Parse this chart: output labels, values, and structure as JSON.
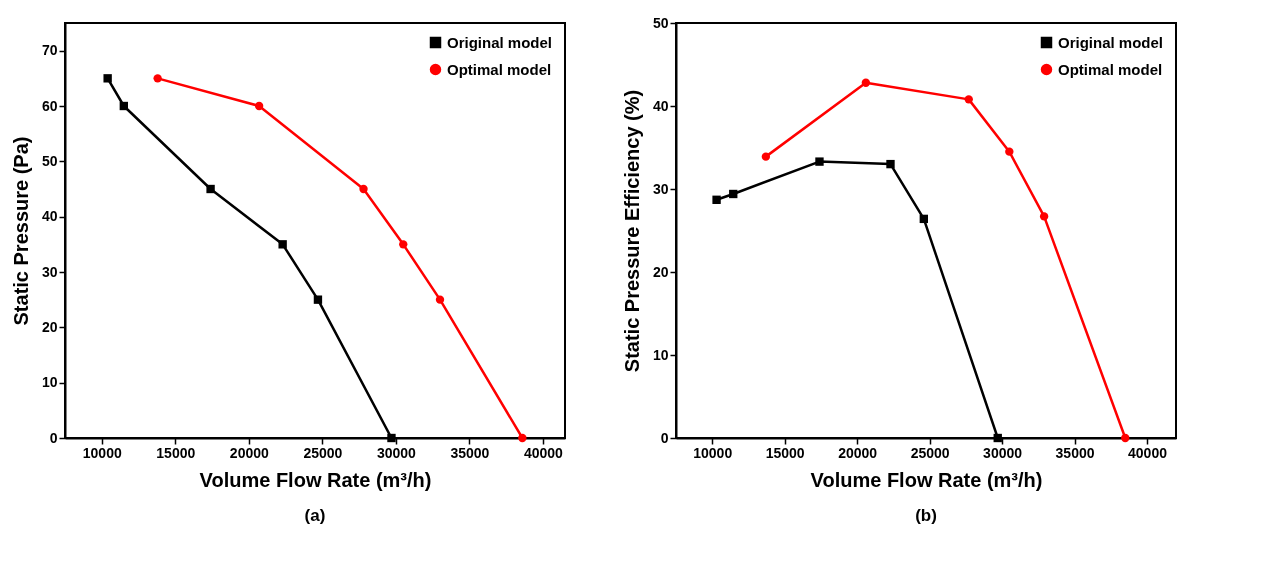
{
  "chart_data": [
    {
      "type": "line",
      "title": "(a)",
      "xlabel": "Volume Flow Rate (m³/h)",
      "ylabel": "Static Pressure (Pa)",
      "xlim": [
        7500,
        41500
      ],
      "xticks": [
        10000,
        15000,
        20000,
        25000,
        30000,
        35000,
        40000
      ],
      "ylim": [
        0,
        75
      ],
      "yticks": [
        0,
        10,
        20,
        30,
        40,
        50,
        60,
        70
      ],
      "grid": false,
      "legend": "top right",
      "series": [
        {
          "name": "Original model",
          "color": "#000000",
          "marker": "square",
          "x": [
            10400,
            11500,
            17400,
            22300,
            24700,
            29700
          ],
          "values": [
            65,
            60,
            45,
            35,
            25,
            0
          ]
        },
        {
          "name": "Optimal model",
          "color": "#ff0000",
          "marker": "circle",
          "x": [
            13800,
            20700,
            27800,
            30500,
            33000,
            38600
          ],
          "values": [
            65,
            60,
            45,
            35,
            25,
            0
          ]
        }
      ]
    },
    {
      "type": "line",
      "title": "(b)",
      "xlabel": "Volume Flow Rate (m³/h)",
      "ylabel": "Static Pressure Efficiency (%)",
      "xlim": [
        7500,
        42000
      ],
      "xticks": [
        10000,
        15000,
        20000,
        25000,
        30000,
        35000,
        40000
      ],
      "ylim": [
        0,
        50
      ],
      "yticks": [
        0,
        10,
        20,
        30,
        40,
        50
      ],
      "grid": false,
      "legend": "top right",
      "series": [
        {
          "name": "Original model",
          "color": "#000000",
          "marker": "square",
          "x": [
            10300,
            11450,
            17400,
            22300,
            24600,
            29700
          ],
          "values": [
            28.7,
            29.4,
            33.3,
            33.0,
            26.4,
            0
          ]
        },
        {
          "name": "Optimal model",
          "color": "#ff0000",
          "marker": "circle",
          "x": [
            13700,
            20600,
            27700,
            30500,
            32900,
            38500
          ],
          "values": [
            33.9,
            42.8,
            40.8,
            34.5,
            26.7,
            0
          ]
        }
      ]
    }
  ]
}
